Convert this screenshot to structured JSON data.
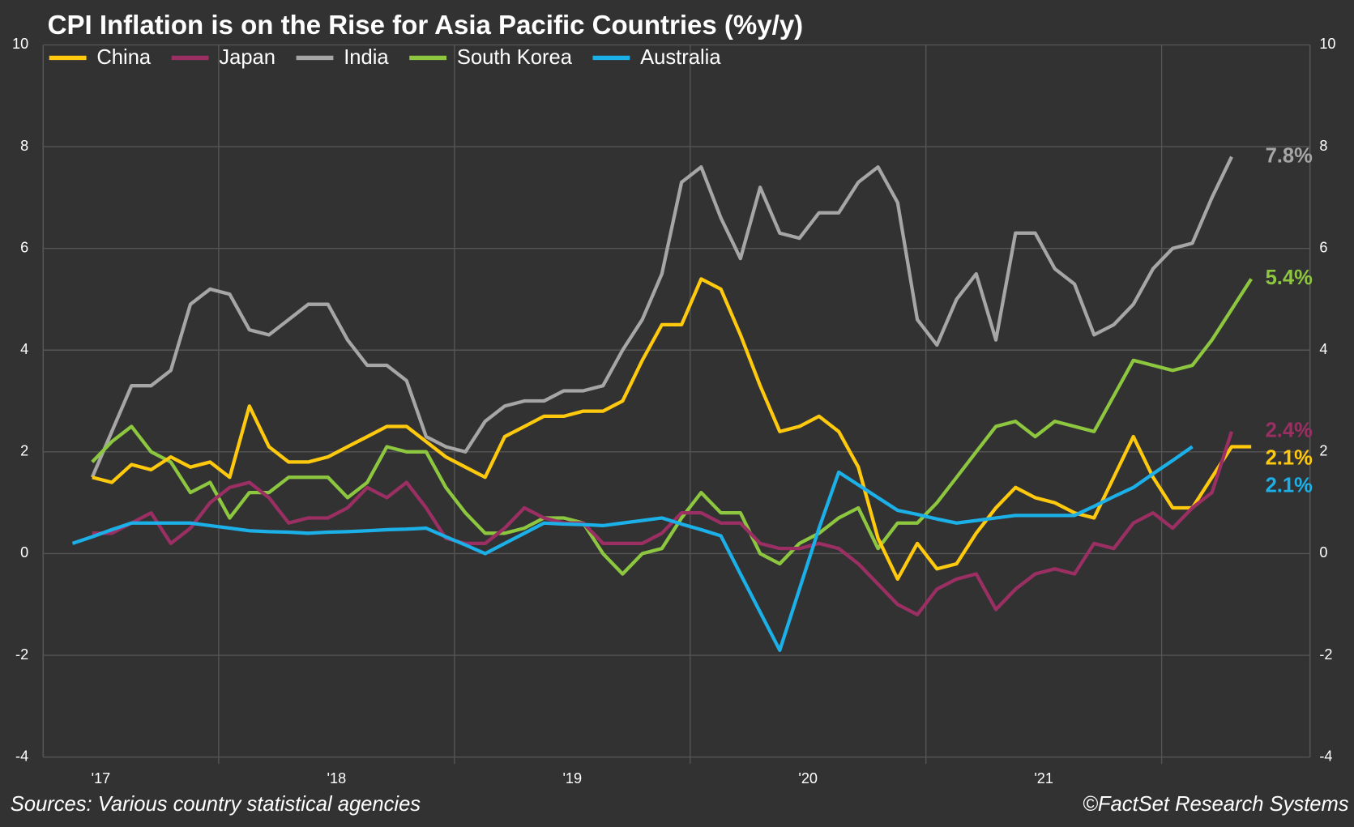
{
  "chart_data": {
    "type": "line",
    "title": "CPI Inflation is on the Rise for Asia Pacific Countries (%y/y)",
    "source": "Sources: Various country statistical agencies",
    "credit": "©FactSet Research Systems",
    "categories": [
      null,
      "'17",
      null,
      null,
      null,
      null,
      null,
      null,
      null,
      null,
      null,
      null,
      null,
      "'18",
      null,
      null,
      null,
      null,
      null,
      null,
      null,
      null,
      null,
      null,
      null,
      "'19",
      null,
      null,
      null,
      null,
      null,
      null,
      null,
      null,
      null,
      null,
      null,
      "'20",
      null,
      null,
      null,
      null,
      null,
      null,
      null,
      null,
      null,
      null,
      null,
      "'21",
      null,
      null,
      null,
      null,
      null,
      null,
      null,
      null,
      null,
      null,
      null
    ],
    "ylim": [
      -4,
      10
    ],
    "yticks": [
      -4,
      -2,
      0,
      2,
      4,
      6,
      8,
      10
    ],
    "grid": true,
    "legend": "top-left",
    "series": [
      {
        "name": "China",
        "color": "#ffc90e",
        "last_label": "2.1%",
        "values": [
          null,
          1.5,
          1.4,
          1.75,
          1.65,
          1.9,
          1.7,
          1.8,
          1.5,
          2.9,
          2.1,
          1.8,
          1.8,
          1.9,
          2.1,
          2.3,
          2.5,
          2.5,
          2.2,
          1.9,
          1.7,
          1.5,
          2.3,
          2.5,
          2.7,
          2.7,
          2.8,
          2.8,
          3.0,
          3.8,
          4.5,
          4.5,
          5.4,
          5.2,
          4.3,
          3.3,
          2.4,
          2.5,
          2.7,
          2.4,
          1.7,
          0.3,
          -0.5,
          0.2,
          -0.3,
          -0.2,
          0.4,
          0.9,
          1.3,
          1.1,
          1.0,
          0.8,
          0.7,
          1.5,
          2.3,
          1.5,
          0.9,
          0.9,
          1.5,
          2.1,
          2.1
        ]
      },
      {
        "name": "Japan",
        "color": "#9b2f63",
        "last_label": "2.4%",
        "values": [
          null,
          0.4,
          0.4,
          0.6,
          0.8,
          0.2,
          0.5,
          1.0,
          1.3,
          1.4,
          1.1,
          0.6,
          0.7,
          0.7,
          0.9,
          1.3,
          1.1,
          1.4,
          0.9,
          0.3,
          0.2,
          0.2,
          0.5,
          0.9,
          0.7,
          0.6,
          0.6,
          0.2,
          0.2,
          0.2,
          0.4,
          0.8,
          0.8,
          0.6,
          0.6,
          0.2,
          0.1,
          0.1,
          0.2,
          0.1,
          -0.2,
          -0.6,
          -1.0,
          -1.2,
          -0.7,
          -0.5,
          -0.4,
          -1.1,
          -0.7,
          -0.4,
          -0.3,
          -0.4,
          0.2,
          0.1,
          0.6,
          0.8,
          0.5,
          0.9,
          1.2,
          2.4,
          null
        ]
      },
      {
        "name": "India",
        "color": "#a6a6a6",
        "last_label": "7.8%",
        "values": [
          null,
          1.5,
          2.4,
          3.3,
          3.3,
          3.6,
          4.9,
          5.2,
          5.1,
          4.4,
          4.3,
          4.6,
          4.9,
          4.9,
          4.2,
          3.7,
          3.7,
          3.4,
          2.3,
          2.1,
          2.0,
          2.6,
          2.9,
          3.0,
          3.0,
          3.2,
          3.2,
          3.3,
          4.0,
          4.6,
          5.5,
          7.3,
          7.6,
          6.6,
          5.8,
          7.2,
          6.3,
          6.2,
          6.7,
          6.7,
          7.3,
          7.6,
          6.9,
          4.6,
          4.1,
          5.0,
          5.5,
          4.2,
          6.3,
          6.3,
          5.6,
          5.3,
          4.3,
          4.5,
          4.9,
          5.6,
          6.0,
          6.1,
          7.0,
          7.8,
          null
        ]
      },
      {
        "name": "South Korea",
        "color": "#8dc63f",
        "last_label": "5.4%",
        "values": [
          null,
          1.8,
          2.2,
          2.5,
          2.0,
          1.8,
          1.2,
          1.4,
          0.7,
          1.2,
          1.2,
          1.5,
          1.5,
          1.5,
          1.1,
          1.4,
          2.1,
          2.0,
          2.0,
          1.3,
          0.8,
          0.4,
          0.4,
          0.5,
          0.7,
          0.7,
          0.6,
          0.0,
          -0.4,
          0.0,
          0.1,
          0.7,
          1.2,
          0.8,
          0.8,
          0.0,
          -0.2,
          0.2,
          0.4,
          0.7,
          0.9,
          0.1,
          0.6,
          0.6,
          1.0,
          1.5,
          2.0,
          2.5,
          2.6,
          2.3,
          2.6,
          2.5,
          2.4,
          3.1,
          3.8,
          3.7,
          3.6,
          3.7,
          4.2,
          4.8,
          5.4
        ]
      },
      {
        "name": "Australia",
        "color": "#1cb0e8",
        "last_label": "2.1%",
        "values": [
          0.2,
          0.33,
          0.47,
          0.6,
          0.6,
          0.6,
          0.6,
          0.55,
          0.5,
          0.45,
          0.43,
          0.42,
          0.4,
          0.42,
          0.43,
          0.45,
          0.47,
          0.48,
          0.5,
          0.33,
          0.17,
          0.0,
          0.2,
          0.4,
          0.6,
          0.58,
          0.57,
          0.55,
          0.6,
          0.65,
          0.7,
          0.58,
          0.47,
          0.35,
          -0.4,
          -1.15,
          -1.9,
          -0.7,
          0.5,
          1.6,
          1.35,
          1.1,
          0.85,
          0.77,
          0.68,
          0.6,
          0.65,
          0.7,
          0.75,
          0.75,
          0.75,
          0.75,
          0.93,
          1.12,
          1.3,
          1.57,
          1.83,
          2.1,
          null,
          null,
          null
        ]
      }
    ]
  }
}
